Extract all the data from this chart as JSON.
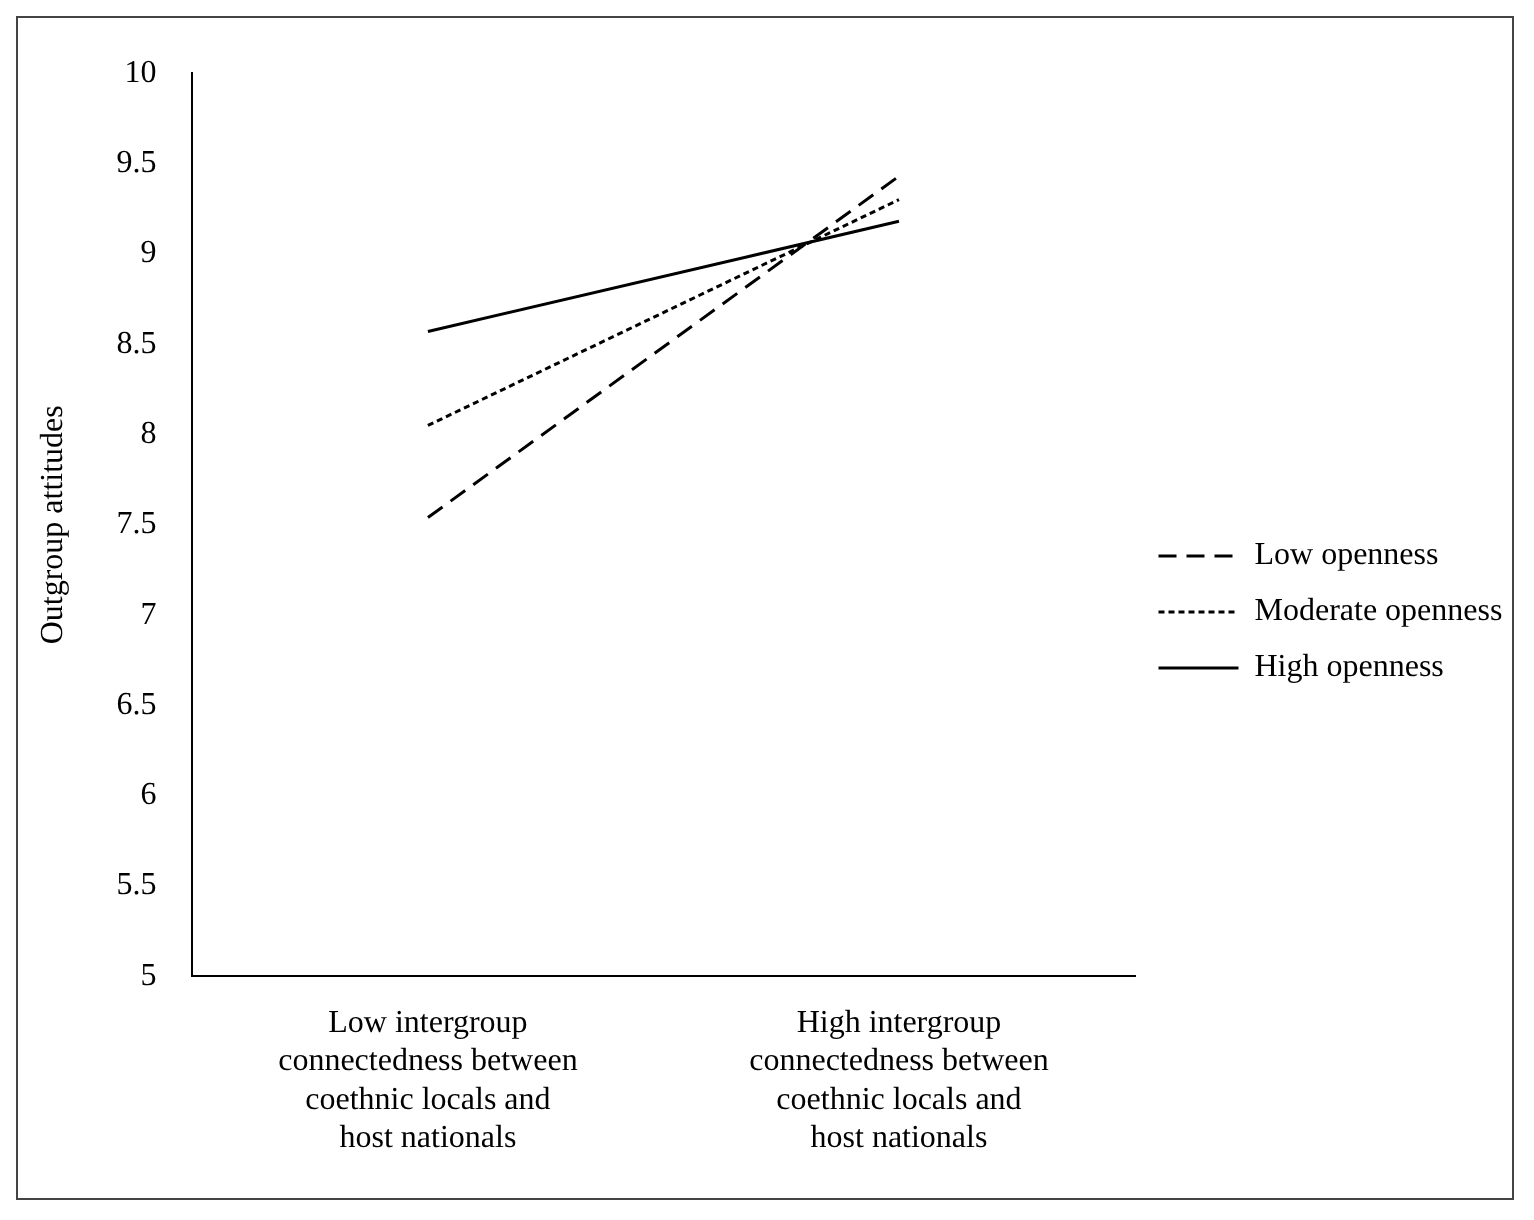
{
  "chart_data": {
    "type": "line",
    "ylabel": "Outgroup attitudes",
    "categories": [
      "Low intergroup connectedness between coethnic locals and host nationals",
      "High intergroup connectedness between coethnic locals and host nationals"
    ],
    "series": [
      {
        "name": "Low openness",
        "color": "#000000",
        "line_style": "dashed",
        "values": [
          7.54,
          9.43
        ]
      },
      {
        "name": "Moderate openness",
        "color": "#000000",
        "line_style": "dotted",
        "values": [
          8.05,
          9.3
        ]
      },
      {
        "name": "High openness",
        "color": "#000000",
        "line_style": "solid",
        "values": [
          8.57,
          9.18
        ]
      }
    ],
    "ylim": [
      5,
      10
    ],
    "yticks": [
      5,
      5.5,
      6,
      6.5,
      7,
      7.5,
      8,
      8.5,
      9,
      9.5,
      10
    ],
    "grid": false,
    "legend": "right",
    "marker": "none"
  }
}
